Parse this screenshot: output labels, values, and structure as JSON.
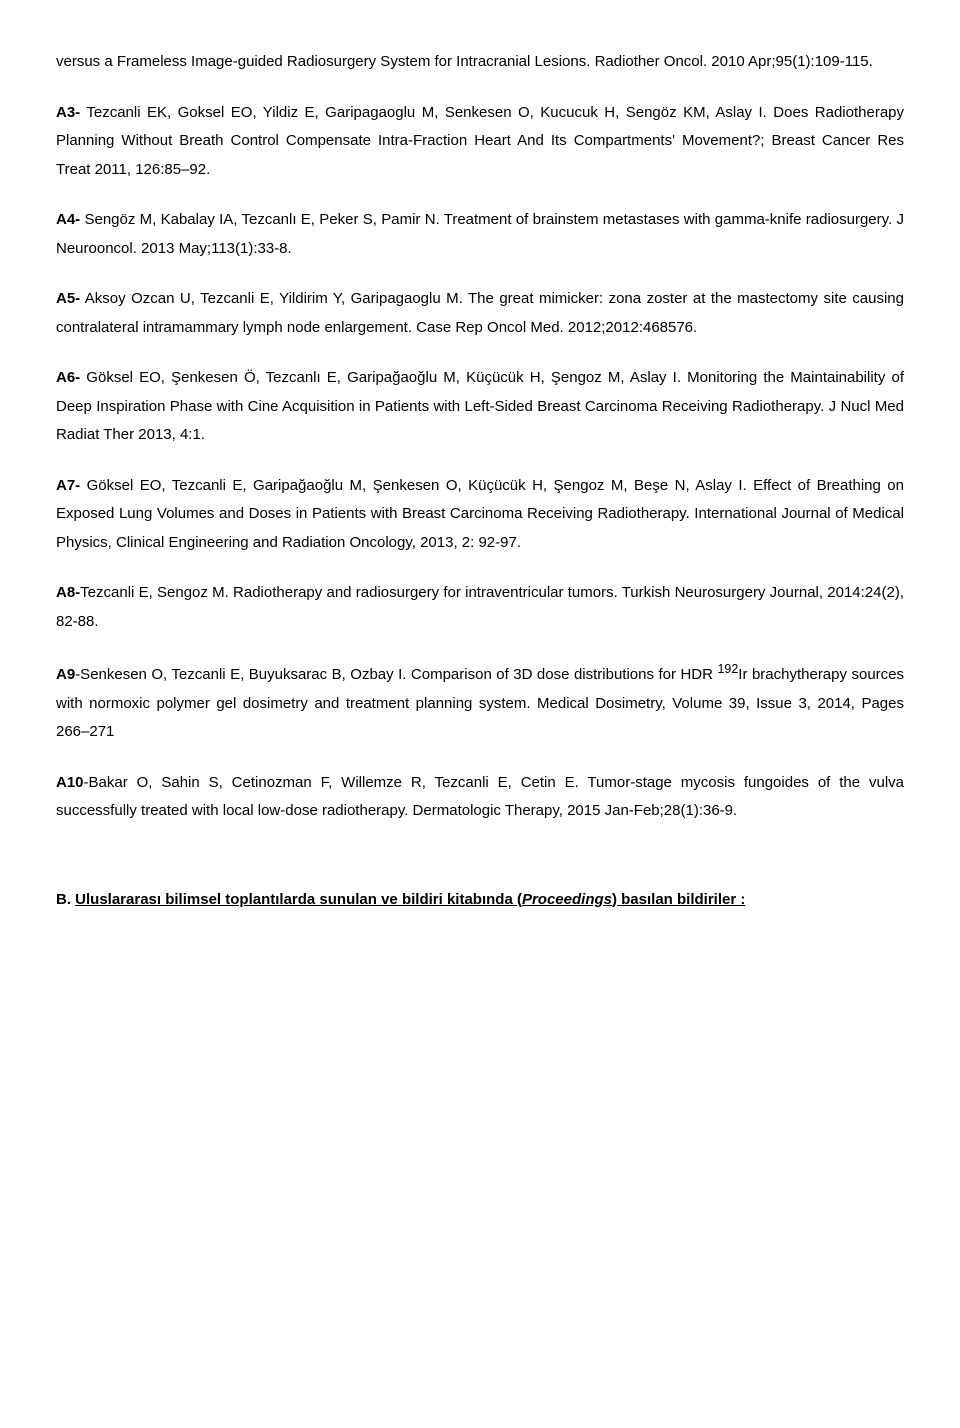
{
  "refs": {
    "a2_tail": "versus a Frameless Image-guided Radiosurgery System for Intracranial Lesions. Radiother Oncol. 2010 Apr;95(1):109-115.",
    "a3": {
      "label": "A3-",
      "text": " Tezcanli EK, Goksel EO, Yildiz E, Garipagaoglu M, Senkesen O, Kucucuk H, Sengöz KM, Aslay I. Does Radiotherapy Planning Without Breath Control Compensate Intra-Fraction Heart And Its Compartments' Movement?; Breast Cancer Res Treat 2011, 126:85–92."
    },
    "a4": {
      "label": "A4-",
      "text": " Sengöz M, Kabalay IA, Tezcanlı E, Peker S, Pamir N. Treatment of brainstem metastases with gamma-knife radiosurgery. J Neurooncol. 2013 May;113(1):33-8."
    },
    "a5": {
      "label": "A5-",
      "text": " Aksoy Ozcan U, Tezcanli E, Yildirim Y, Garipagaoglu M. The great mimicker: zona zoster at the mastectomy site causing contralateral intramammary lymph node enlargement. Case Rep Oncol Med. 2012;2012:468576."
    },
    "a6": {
      "label": "A6-",
      "text": " Göksel EO, Şenkesen Ö, Tezcanlı E, Garipağaoğlu M, Küçücük H, Şengoz M, Aslay I. Monitoring the Maintainability of Deep Inspiration Phase with Cine Acquisition in Patients with Left-Sided Breast Carcinoma Receiving Radiotherapy. J Nucl Med Radiat Ther 2013, 4:1."
    },
    "a7": {
      "label": "A7-",
      "text": " Göksel EO, Tezcanli E, Garipağaoğlu M, Şenkesen O, Küçücük H, Şengoz M, Beşe N, Aslay I. Effect of Breathing on Exposed Lung Volumes and Doses in Patients with Breast Carcinoma Receiving Radiotherapy. International Journal of Medical Physics, Clinical Engineering and Radiation Oncology, 2013, 2: 92-97."
    },
    "a8": {
      "label": "A8-",
      "text": "Tezcanli E, Sengoz M. Radiotherapy and radiosurgery for intraventricular tumors. Turkish Neurosurgery Journal, 2014:24(2), 82-88."
    },
    "a9": {
      "label": "A9",
      "text": "-Senkesen O, Tezcanli E, Buyuksarac B, Ozbay I.  Comparison of 3D dose distributions for HDR ",
      "sup": "192",
      "text2": "Ir brachytherapy sources with normoxic polymer gel dosimetry and treatment planning system. Medical Dosimetry, Volume 39, Issue 3, 2014, Pages 266–271"
    },
    "a10": {
      "label": "A10",
      "text": "-Bakar O, Sahin S, Cetinozman F, Willemze R, Tezcanli E, Cetin E.  Tumor-stage mycosis fungoides of the vulva successfully treated with local low-dose radiotherapy. Dermatologic Therapy, 2015 Jan-Feb;28(1):36-9."
    }
  },
  "section_b": {
    "prefix": "B. ",
    "title_underlined": "Uluslararası bilimsel toplantılarda sunulan ve bildiri kitabında (",
    "title_italic": "Proceedings",
    "title_underlined2": ") basılan bildiriler :"
  }
}
